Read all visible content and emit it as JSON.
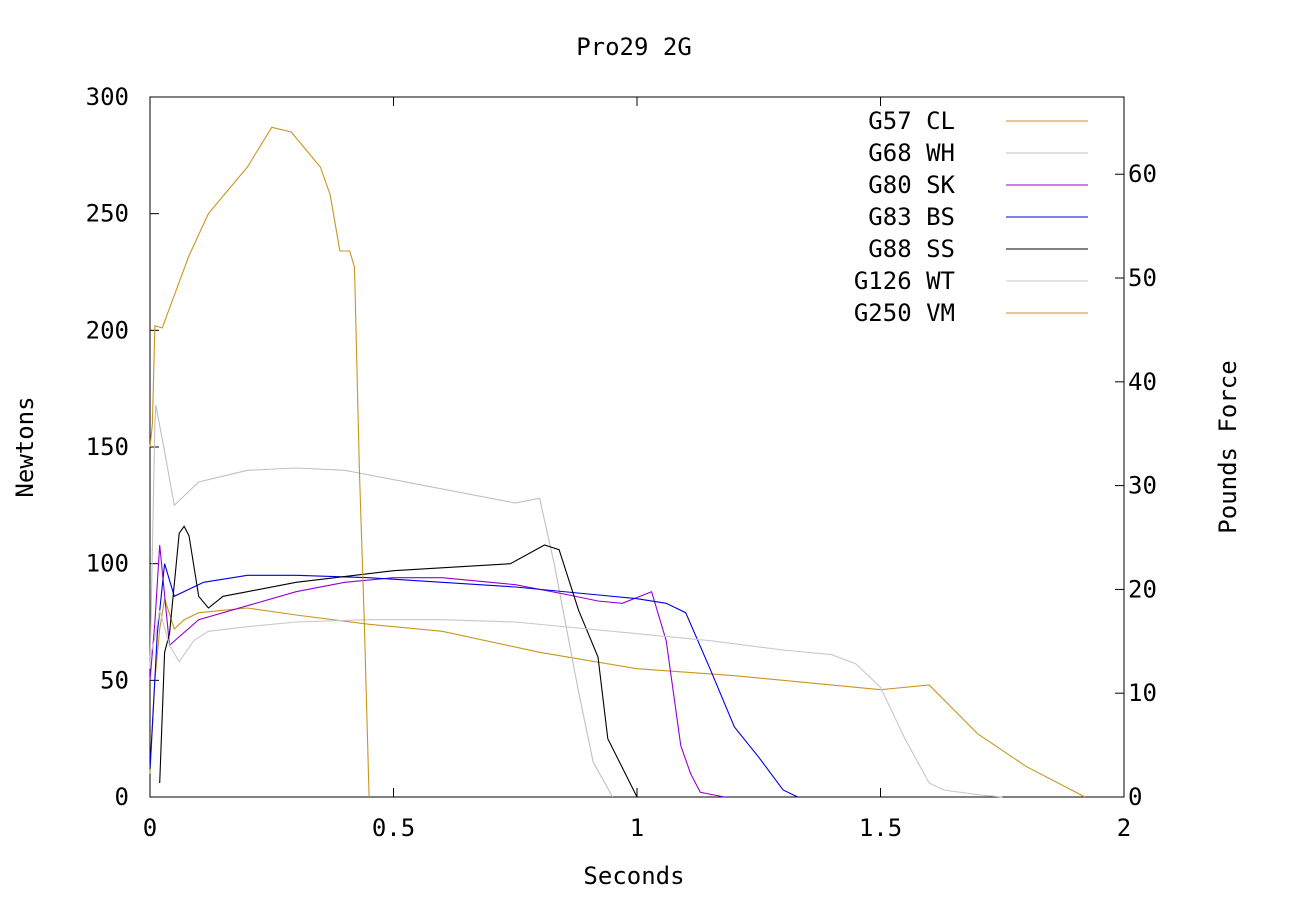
{
  "chart_data": {
    "type": "line",
    "title": "Pro29 2G",
    "xlabel": "Seconds",
    "ylabel": "Newtons",
    "y2label": "Pounds Force",
    "xlim": [
      0,
      2
    ],
    "ylim": [
      0,
      300
    ],
    "y2lim": [
      0,
      67.44
    ],
    "x_ticks": [
      {
        "value": 0,
        "label": "0"
      },
      {
        "value": 0.5,
        "label": "0.5"
      },
      {
        "value": 1,
        "label": "1"
      },
      {
        "value": 1.5,
        "label": "1.5"
      },
      {
        "value": 2,
        "label": "2"
      }
    ],
    "y_ticks": [
      {
        "value": 0,
        "label": "0"
      },
      {
        "value": 50,
        "label": "50"
      },
      {
        "value": 100,
        "label": "100"
      },
      {
        "value": 150,
        "label": "150"
      },
      {
        "value": 200,
        "label": "200"
      },
      {
        "value": 250,
        "label": "250"
      },
      {
        "value": 300,
        "label": "300"
      }
    ],
    "y2_ticks": [
      {
        "value": 0,
        "label": "0"
      },
      {
        "value": 10,
        "label": "10"
      },
      {
        "value": 20,
        "label": "20"
      },
      {
        "value": 30,
        "label": "30"
      },
      {
        "value": 40,
        "label": "40"
      },
      {
        "value": 50,
        "label": "50"
      },
      {
        "value": 60,
        "label": "60"
      }
    ],
    "legend_position": "top-right",
    "grid": false,
    "series": [
      {
        "name": "G57 CL",
        "color": "#c8961e",
        "points": [
          [
            0,
            10
          ],
          [
            0.01,
            50
          ],
          [
            0.02,
            72
          ],
          [
            0.03,
            85
          ],
          [
            0.05,
            72
          ],
          [
            0.07,
            76
          ],
          [
            0.1,
            79
          ],
          [
            0.15,
            80
          ],
          [
            0.2,
            81
          ],
          [
            0.3,
            78
          ],
          [
            0.45,
            74
          ],
          [
            0.6,
            71
          ],
          [
            0.8,
            62
          ],
          [
            1.0,
            55
          ],
          [
            1.2,
            52
          ],
          [
            1.5,
            46
          ],
          [
            1.6,
            48
          ],
          [
            1.7,
            27
          ],
          [
            1.8,
            13
          ],
          [
            1.92,
            0
          ]
        ]
      },
      {
        "name": "G68 WH",
        "color": "#c0c0c0",
        "points": [
          [
            0,
            55
          ],
          [
            0.01,
            160
          ],
          [
            0.012,
            168
          ],
          [
            0.03,
            148
          ],
          [
            0.05,
            125
          ],
          [
            0.1,
            135
          ],
          [
            0.2,
            140
          ],
          [
            0.3,
            141
          ],
          [
            0.4,
            140
          ],
          [
            0.55,
            134
          ],
          [
            0.75,
            126
          ],
          [
            0.8,
            128
          ],
          [
            0.83,
            100
          ],
          [
            0.88,
            45
          ],
          [
            0.91,
            15
          ],
          [
            0.95,
            0
          ]
        ]
      },
      {
        "name": "G80 SK",
        "color": "#9400d3",
        "points": [
          [
            0,
            50
          ],
          [
            0.01,
            75
          ],
          [
            0.02,
            108
          ],
          [
            0.04,
            65
          ],
          [
            0.1,
            76
          ],
          [
            0.2,
            82
          ],
          [
            0.3,
            88
          ],
          [
            0.4,
            92
          ],
          [
            0.5,
            94
          ],
          [
            0.6,
            94
          ],
          [
            0.75,
            91
          ],
          [
            0.85,
            87
          ],
          [
            0.92,
            84
          ],
          [
            0.97,
            83
          ],
          [
            1.03,
            88
          ],
          [
            1.06,
            67
          ],
          [
            1.09,
            22
          ],
          [
            1.11,
            10
          ],
          [
            1.13,
            2
          ],
          [
            1.18,
            0
          ]
        ]
      },
      {
        "name": "G83 BS",
        "color": "#0000e0",
        "points": [
          [
            0,
            12
          ],
          [
            0.015,
            70
          ],
          [
            0.03,
            100
          ],
          [
            0.05,
            86
          ],
          [
            0.11,
            92
          ],
          [
            0.2,
            95
          ],
          [
            0.3,
            95
          ],
          [
            0.45,
            94
          ],
          [
            0.6,
            92
          ],
          [
            0.75,
            90
          ],
          [
            0.9,
            87
          ],
          [
            1.0,
            85
          ],
          [
            1.06,
            83
          ],
          [
            1.1,
            79
          ],
          [
            1.15,
            55
          ],
          [
            1.2,
            30
          ],
          [
            1.25,
            17
          ],
          [
            1.3,
            3
          ],
          [
            1.33,
            0
          ]
        ]
      },
      {
        "name": "G88 SS",
        "color": "#000000",
        "points": [
          [
            0.02,
            6
          ],
          [
            0.03,
            62
          ],
          [
            0.04,
            70
          ],
          [
            0.06,
            113
          ],
          [
            0.07,
            116
          ],
          [
            0.08,
            112
          ],
          [
            0.1,
            86
          ],
          [
            0.12,
            81
          ],
          [
            0.15,
            86
          ],
          [
            0.2,
            88
          ],
          [
            0.3,
            92
          ],
          [
            0.5,
            97
          ],
          [
            0.74,
            100
          ],
          [
            0.81,
            108
          ],
          [
            0.84,
            106
          ],
          [
            0.88,
            80
          ],
          [
            0.92,
            60
          ],
          [
            0.94,
            25
          ],
          [
            1.0,
            0
          ]
        ]
      },
      {
        "name": "G126 WT",
        "color": "#c8c8c8",
        "points": [
          [
            0,
            60
          ],
          [
            0.01,
            68
          ],
          [
            0.02,
            80
          ],
          [
            0.04,
            65
          ],
          [
            0.06,
            58
          ],
          [
            0.09,
            67
          ],
          [
            0.12,
            71
          ],
          [
            0.2,
            73
          ],
          [
            0.3,
            75
          ],
          [
            0.45,
            76
          ],
          [
            0.6,
            76
          ],
          [
            0.75,
            75
          ],
          [
            0.9,
            72
          ],
          [
            1.0,
            70
          ],
          [
            1.15,
            67
          ],
          [
            1.3,
            63
          ],
          [
            1.4,
            61
          ],
          [
            1.45,
            57
          ],
          [
            1.5,
            47
          ],
          [
            1.55,
            25
          ],
          [
            1.6,
            6
          ],
          [
            1.63,
            3
          ],
          [
            1.7,
            1
          ],
          [
            1.75,
            0
          ]
        ]
      },
      {
        "name": "G250 VM",
        "color": "#c8961e",
        "points": [
          [
            0,
            150
          ],
          [
            0.005,
            160
          ],
          [
            0.01,
            202
          ],
          [
            0.025,
            201
          ],
          [
            0.05,
            215
          ],
          [
            0.08,
            232
          ],
          [
            0.12,
            250
          ],
          [
            0.2,
            270
          ],
          [
            0.25,
            287
          ],
          [
            0.29,
            285
          ],
          [
            0.35,
            270
          ],
          [
            0.37,
            258
          ],
          [
            0.39,
            234
          ],
          [
            0.41,
            234
          ],
          [
            0.42,
            227
          ],
          [
            0.43,
            140
          ],
          [
            0.44,
            75
          ],
          [
            0.45,
            0
          ]
        ]
      }
    ]
  }
}
